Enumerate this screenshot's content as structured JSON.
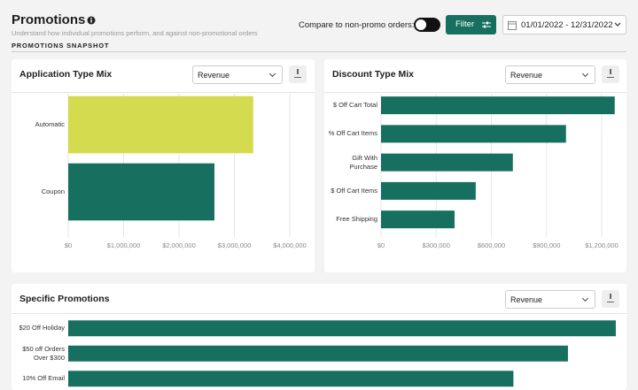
{
  "header": {
    "title": "Promotions",
    "subtitle": "Understand how individual promotions perform, and against non-promotional orders",
    "section": "PROMOTIONS SNAPSHOT"
  },
  "controls": {
    "compare_label": "Compare to non-promo orders:",
    "filter": "Filter",
    "date_range": "01/01/2022 - 12/31/2022"
  },
  "chart_data": [
    {
      "type": "hbar",
      "title": "Application Type Mix",
      "selector": "Revenue",
      "categories": [
        "Automatic",
        "Coupon"
      ],
      "values": [
        3340000,
        2640000
      ],
      "colors": [
        "#d4db4f",
        "#17705f"
      ],
      "xlim": [
        0,
        4000000
      ],
      "xticks": [
        {
          "value": 0,
          "label": "$0"
        },
        {
          "value": 1000000,
          "label": "$1,000,000"
        },
        {
          "value": 2000000,
          "label": "$2,000,000"
        },
        {
          "value": 3000000,
          "label": "$3,000,000"
        },
        {
          "value": 4000000,
          "label": "$4,000,000"
        }
      ],
      "grid": true
    },
    {
      "type": "hbar",
      "title": "Discount Type Mix",
      "selector": "Revenue",
      "categories": [
        "$ Off Cart Total",
        "% Off Cart Items",
        "Gift With Purchase",
        "$ Off Cart Items",
        "Free Shipping"
      ],
      "values": [
        1271000,
        1006000,
        717000,
        515000,
        400000
      ],
      "color": "#17705f",
      "xlim": [
        0,
        1200000
      ],
      "xticks": [
        {
          "value": 0,
          "label": "$0"
        },
        {
          "value": 300000,
          "label": "$300,000"
        },
        {
          "value": 600000,
          "label": "$600,000"
        },
        {
          "value": 900000,
          "label": "$900,000"
        },
        {
          "value": 1200000,
          "label": "$1,200,000"
        }
      ],
      "grid": true
    },
    {
      "type": "hbar",
      "title": "Specific Promotions",
      "selector": "Revenue",
      "categories": [
        "$20 Off Holiday",
        "$50 off Orders Over $300",
        "10% Off Email"
      ],
      "values": [
        492000,
        449000,
        400000
      ],
      "color": "#17705f",
      "xlim": [
        0,
        500000
      ],
      "grid": false
    }
  ]
}
